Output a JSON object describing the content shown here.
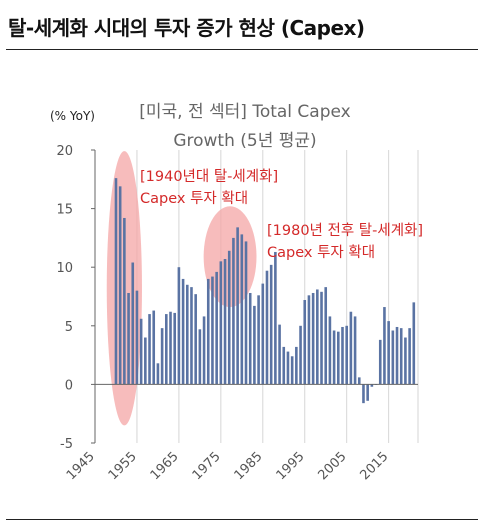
{
  "header": {
    "title": "탈-세계화 시대의 투자 증가 현상 (Capex)"
  },
  "chart_data": {
    "type": "bar",
    "title_lines": [
      "[미국, 전 섹터] Total Capex",
      "Growth (5년 평균)"
    ],
    "ylabel": "(% YoY)",
    "xlabel": "",
    "ylim": [
      -5,
      20
    ],
    "yticks": [
      -5,
      0,
      5,
      10,
      15,
      20
    ],
    "xlim": [
      1945,
      2022
    ],
    "xticks": [
      1945,
      1955,
      1965,
      1975,
      1985,
      1995,
      2005,
      2015
    ],
    "grid": "vertical",
    "bar_color": "#5a73a3",
    "highlight_color": "#f4a6a6",
    "x": [
      1950,
      1951,
      1952,
      1953,
      1954,
      1955,
      1956,
      1957,
      1958,
      1959,
      1960,
      1961,
      1962,
      1963,
      1964,
      1965,
      1966,
      1967,
      1968,
      1969,
      1970,
      1971,
      1972,
      1973,
      1974,
      1975,
      1976,
      1977,
      1978,
      1979,
      1980,
      1981,
      1982,
      1983,
      1984,
      1985,
      1986,
      1987,
      1988,
      1989,
      1990,
      1991,
      1992,
      1993,
      1994,
      1995,
      1996,
      1997,
      1998,
      1999,
      2000,
      2001,
      2002,
      2003,
      2004,
      2005,
      2006,
      2007,
      2008,
      2009,
      2010,
      2011,
      2012,
      2013,
      2014,
      2015,
      2016,
      2017,
      2018,
      2019,
      2020,
      2021
    ],
    "values": [
      17.6,
      16.9,
      14.2,
      7.8,
      10.4,
      8.0,
      5.6,
      4.0,
      6.0,
      6.3,
      1.8,
      4.8,
      6.0,
      6.2,
      6.1,
      10.0,
      9.0,
      8.5,
      8.3,
      7.7,
      4.7,
      5.8,
      9.0,
      9.2,
      9.6,
      10.5,
      10.7,
      11.4,
      12.5,
      13.4,
      12.8,
      12.2,
      7.8,
      6.7,
      7.6,
      8.6,
      9.7,
      10.2,
      11.3,
      5.1,
      3.2,
      2.8,
      2.4,
      3.2,
      5.0,
      7.2,
      7.6,
      7.8,
      8.1,
      7.9,
      8.3,
      5.8,
      4.6,
      4.5,
      4.9,
      5.0,
      6.2,
      5.8,
      0.6,
      -1.6,
      -1.4,
      -0.2,
      0.0,
      3.8,
      6.6,
      5.4,
      4.6,
      4.9,
      4.8,
      4.0,
      4.8,
      7.0
    ],
    "annotations": [
      {
        "lines": [
          "[1940년대 탈-세계화]",
          "Capex 투자 확대"
        ]
      },
      {
        "lines": [
          "[1980년 전후 탈-세계화]",
          "Capex 투자 확대"
        ]
      }
    ],
    "highlights": [
      {
        "x_center": 1952,
        "x_radius": 4.2,
        "y_center": 8.2,
        "y_radius": 11.7
      },
      {
        "x_center": 1977.2,
        "x_radius": 6.3,
        "y_center": 10.9,
        "y_radius": 4.3
      }
    ]
  }
}
